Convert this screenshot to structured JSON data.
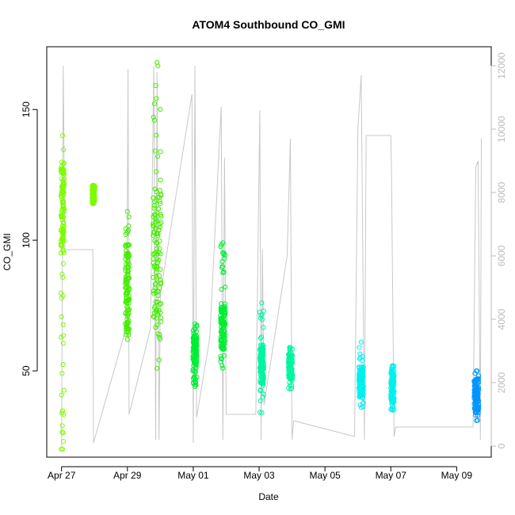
{
  "chart_data": {
    "type": "scatter",
    "title": "ATOM4 Southbound CO_GMI",
    "xlabel": "Date",
    "ylabel": "CO_GMI",
    "x_ticks": [
      "Apr 27",
      "Apr 29",
      "May 01",
      "May 03",
      "May 05",
      "May 07",
      "May 09"
    ],
    "x_tick_days": [
      0,
      2,
      4,
      6,
      8,
      10,
      12
    ],
    "xlim_days": [
      -0.45,
      13.05
    ],
    "ylim": [
      17,
      174
    ],
    "y_ticks": [
      50,
      100,
      150
    ],
    "right_axis": {
      "ylim": [
        -350,
        12600
      ],
      "ticks": [
        0,
        2000,
        4000,
        6000,
        8000,
        10000,
        12000
      ],
      "color": "#bbbbbb"
    },
    "grid": false,
    "legend": "none",
    "marker": "open-circle",
    "series": [
      {
        "color": "#7CFC00",
        "clusters": [
          {
            "day": 0.03,
            "width": 0.1,
            "low": 20,
            "high": 140,
            "core_low": 95,
            "core_high": 130
          },
          {
            "day": 0.97,
            "width": 0.08,
            "low": 114,
            "high": 121,
            "core_low": 114,
            "core_high": 121
          }
        ]
      },
      {
        "color": "#44EE00",
        "clusters": [
          {
            "day": 2.0,
            "width": 0.12,
            "low": 62,
            "high": 111,
            "core_low": 65,
            "core_high": 95
          },
          {
            "day": 2.9,
            "width": 0.25,
            "low": 51,
            "high": 168,
            "core_low": 70,
            "core_high": 120
          }
        ]
      },
      {
        "color": "#00EE33",
        "clusters": [
          {
            "day": 4.05,
            "width": 0.12,
            "low": 44,
            "high": 68,
            "core_low": 52,
            "core_high": 64
          },
          {
            "day": 4.9,
            "width": 0.14,
            "low": 51,
            "high": 99,
            "core_low": 58,
            "core_high": 75
          }
        ]
      },
      {
        "color": "#00F5A0",
        "clusters": [
          {
            "day": 6.08,
            "width": 0.12,
            "low": 34,
            "high": 76,
            "core_low": 45,
            "core_high": 60
          },
          {
            "day": 6.95,
            "width": 0.12,
            "low": 43,
            "high": 59,
            "core_low": 47,
            "core_high": 57
          }
        ]
      },
      {
        "color": "#00F0F0",
        "clusters": [
          {
            "day": 9.1,
            "width": 0.14,
            "low": 36,
            "high": 61,
            "core_low": 40,
            "core_high": 52
          },
          {
            "day": 10.05,
            "width": 0.1,
            "low": 35,
            "high": 52,
            "core_low": 38,
            "core_high": 50
          }
        ]
      },
      {
        "color": "#0096FF",
        "clusters": [
          {
            "day": 12.6,
            "width": 0.14,
            "low": 31,
            "high": 50,
            "core_low": 34,
            "core_high": 47
          }
        ]
      }
    ],
    "altitude_trace": {
      "color": "#c8c8c8",
      "points": [
        [
          0.0,
          0
        ],
        [
          0.05,
          12000
        ],
        [
          0.1,
          6200
        ],
        [
          0.95,
          6200
        ],
        [
          0.97,
          100
        ],
        [
          1.98,
          3800
        ],
        [
          2.02,
          11900
        ],
        [
          2.05,
          1000
        ],
        [
          2.7,
          3700
        ],
        [
          2.8,
          12000
        ],
        [
          2.86,
          200
        ],
        [
          2.9,
          11800
        ],
        [
          2.96,
          200
        ],
        [
          3.0,
          4800
        ],
        [
          3.96,
          11100
        ],
        [
          4.0,
          100
        ],
        [
          4.05,
          12000
        ],
        [
          4.1,
          900
        ],
        [
          4.5,
          3400
        ],
        [
          4.85,
          10700
        ],
        [
          4.9,
          200
        ],
        [
          4.95,
          9100
        ],
        [
          5.0,
          1000
        ],
        [
          5.9,
          1000
        ],
        [
          6.02,
          10600
        ],
        [
          6.06,
          200
        ],
        [
          6.1,
          6200
        ],
        [
          6.15,
          1300
        ],
        [
          6.85,
          6000
        ],
        [
          6.95,
          9700
        ],
        [
          7.0,
          200
        ],
        [
          7.05,
          800
        ],
        [
          8.9,
          300
        ],
        [
          9.0,
          10000
        ],
        [
          9.1,
          11700
        ],
        [
          9.2,
          200
        ],
        [
          9.25,
          9800
        ],
        [
          10.0,
          9800
        ],
        [
          10.02,
          8700
        ],
        [
          10.1,
          300
        ],
        [
          10.15,
          600
        ],
        [
          12.5,
          600
        ],
        [
          12.58,
          8800
        ],
        [
          12.65,
          9000
        ],
        [
          12.72,
          200
        ],
        [
          12.75,
          9700
        ]
      ]
    }
  }
}
